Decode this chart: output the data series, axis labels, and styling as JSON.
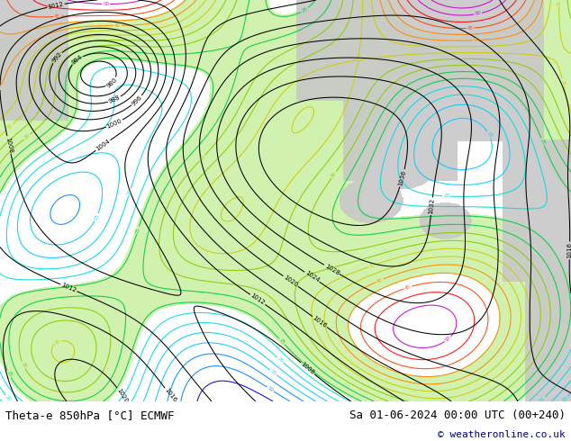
{
  "title_left": "Theta-e 850hPa [°C] ECMWF",
  "title_right": "Sa 01-06-2024 00:00 UTC (00+240)",
  "copyright": "© weatheronline.co.uk",
  "bg_color": "#ffffff",
  "map_bg_color": "#e8e8e8",
  "fig_width": 6.34,
  "fig_height": 4.9,
  "dpi": 100,
  "bottom_bar_height": 0.09,
  "text_color": "#000000",
  "copyright_color": "#00008b",
  "font_size_labels": 9,
  "font_size_copyright": 8
}
